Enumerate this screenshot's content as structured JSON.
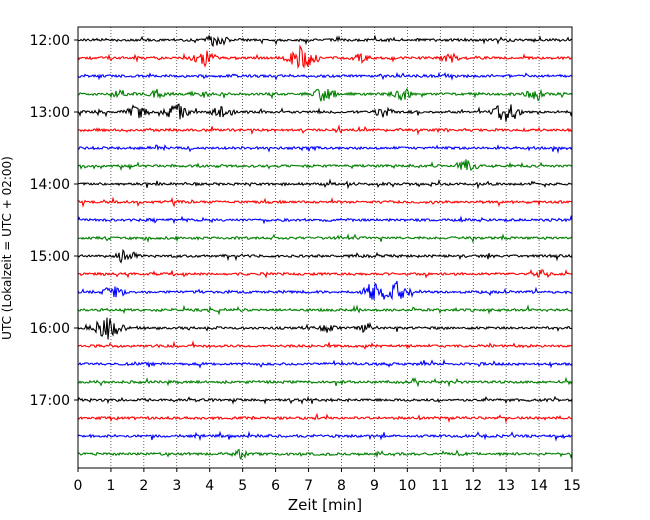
{
  "chart_data": {
    "type": "line",
    "title": "",
    "xlabel": "Zeit  [min]",
    "ylabel": "UTC (Lokalzeit = UTC + 02:00)",
    "xlim": [
      0,
      15
    ],
    "x_ticks": [
      0,
      1,
      2,
      3,
      4,
      5,
      6,
      7,
      8,
      9,
      10,
      11,
      12,
      13,
      14,
      15
    ],
    "x_tick_labels": [
      "0",
      "1",
      "2",
      "3",
      "4",
      "5",
      "6",
      "7",
      "8",
      "9",
      "10",
      "11",
      "12",
      "13",
      "14",
      "15"
    ],
    "y_tick_labels": [
      "12:00",
      "13:00",
      "14:00",
      "15:00",
      "16:00",
      "17:00"
    ],
    "grid": "vertical dotted at each minute",
    "trace_interval_minutes": 15,
    "start_time": "12:00",
    "colors_cycle": [
      "#000000",
      "#ff0000",
      "#0000ff",
      "#008000"
    ],
    "series": [
      {
        "start": "12:00",
        "color": "#000000",
        "events": [
          [
            4.2,
            1.0
          ]
        ]
      },
      {
        "start": "12:15",
        "color": "#ff0000",
        "events": [
          [
            3.8,
            1.3
          ],
          [
            6.8,
            1.7
          ],
          [
            8.6,
            0.6
          ],
          [
            11.3,
            0.7
          ]
        ]
      },
      {
        "start": "12:30",
        "color": "#0000ff",
        "events": []
      },
      {
        "start": "12:45",
        "color": "#008000",
        "events": [
          [
            1.3,
            0.6
          ],
          [
            2.4,
            0.7
          ],
          [
            3.7,
            0.7
          ],
          [
            7.5,
            1.1
          ],
          [
            9.8,
            1.0
          ],
          [
            13.9,
            1.0
          ]
        ]
      },
      {
        "start": "13:00",
        "color": "#000000",
        "events": [
          [
            1.8,
            1.0
          ],
          [
            3.0,
            1.2
          ],
          [
            4.4,
            1.1
          ],
          [
            9.3,
            0.8
          ],
          [
            13.0,
            1.6
          ]
        ]
      },
      {
        "start": "13:15",
        "color": "#ff0000",
        "events": []
      },
      {
        "start": "13:30",
        "color": "#0000ff",
        "events": []
      },
      {
        "start": "13:45",
        "color": "#008000",
        "events": [
          [
            11.8,
            0.9
          ]
        ]
      },
      {
        "start": "14:00",
        "color": "#000000",
        "events": []
      },
      {
        "start": "14:15",
        "color": "#ff0000",
        "events": []
      },
      {
        "start": "14:30",
        "color": "#0000ff",
        "events": []
      },
      {
        "start": "14:45",
        "color": "#008000",
        "events": []
      },
      {
        "start": "15:00",
        "color": "#000000",
        "events": [
          [
            1.5,
            1.1
          ]
        ]
      },
      {
        "start": "15:15",
        "color": "#ff0000",
        "events": [
          [
            14.1,
            0.6
          ]
        ]
      },
      {
        "start": "15:30",
        "color": "#0000ff",
        "events": [
          [
            1.1,
            1.0
          ],
          [
            9.0,
            1.3
          ],
          [
            9.7,
            1.3
          ]
        ]
      },
      {
        "start": "15:45",
        "color": "#008000",
        "events": []
      },
      {
        "start": "16:00",
        "color": "#000000",
        "events": [
          [
            0.9,
            1.7
          ],
          [
            7.6,
            0.6
          ],
          [
            8.8,
            0.6
          ]
        ]
      },
      {
        "start": "16:15",
        "color": "#ff0000",
        "events": []
      },
      {
        "start": "16:30",
        "color": "#0000ff",
        "events": []
      },
      {
        "start": "16:45",
        "color": "#008000",
        "events": []
      },
      {
        "start": "17:00",
        "color": "#000000",
        "events": []
      },
      {
        "start": "17:15",
        "color": "#ff0000",
        "events": []
      },
      {
        "start": "17:30",
        "color": "#0000ff",
        "events": []
      },
      {
        "start": "17:45",
        "color": "#008000",
        "events": [
          [
            4.9,
            0.5
          ]
        ]
      }
    ]
  }
}
